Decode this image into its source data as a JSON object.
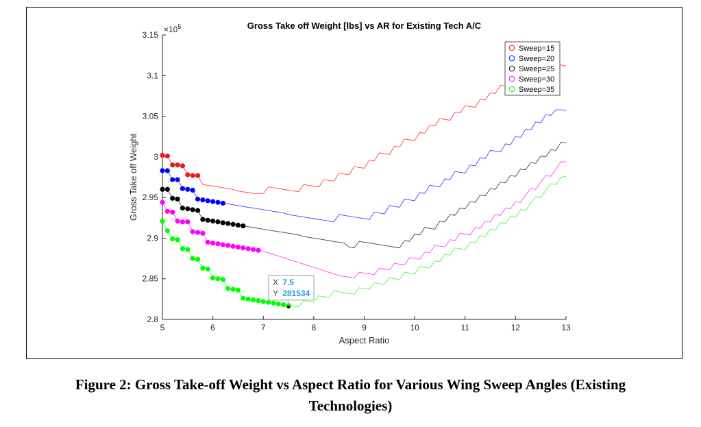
{
  "caption": {
    "line1": "Figure 2: Gross Take-off Weight vs Aspect Ratio for Various Wing Sweep Angles (Existing",
    "line2": "Technologies)"
  },
  "chart_data": {
    "type": "line",
    "title": "Gross Take off Weight [lbs] vs AR for Existing Tech A/C",
    "xlabel": "Aspect Ratio",
    "ylabel": "Gross Take off Weight",
    "y_exponent_label": "×10",
    "y_exponent": "5",
    "xlim": [
      5,
      13
    ],
    "ylim": [
      2.8,
      3.15
    ],
    "xticks": [
      5,
      6,
      7,
      8,
      9,
      10,
      11,
      12,
      13
    ],
    "yticks": [
      2.8,
      2.85,
      2.9,
      2.95,
      3.0,
      3.05,
      3.1,
      3.15
    ],
    "ytick_labels": [
      "2.8",
      "2.85",
      "2.9",
      "2.95",
      "3",
      "3.05",
      "3.1",
      "3.15"
    ],
    "grid": false,
    "legend_position": "top-right",
    "x_start": 5,
    "x_step": 0.1,
    "series": [
      {
        "name": "Sweep=15",
        "color": "#ff0000",
        "marker_color": "#e51c23",
        "marker_count": 8,
        "values": [
          3.002,
          3.001,
          2.99,
          2.99,
          2.989,
          2.978,
          2.977,
          2.977,
          2.966,
          2.965,
          2.964,
          2.963,
          2.962,
          2.961,
          2.96,
          2.958,
          2.957,
          2.956,
          2.955,
          2.955,
          2.955,
          2.963,
          2.962,
          2.961,
          2.96,
          2.959,
          2.958,
          2.957,
          2.966,
          2.965,
          2.964,
          2.963,
          2.972,
          2.971,
          2.97,
          2.98,
          2.979,
          2.978,
          2.988,
          2.987,
          2.986,
          2.996,
          2.995,
          3.005,
          3.004,
          3.003,
          3.013,
          3.012,
          3.022,
          3.021,
          3.02,
          3.03,
          3.029,
          3.039,
          3.038,
          3.047,
          3.046,
          3.045,
          3.055,
          3.054,
          3.063,
          3.062,
          3.061,
          3.071,
          3.07,
          3.079,
          3.078,
          3.088,
          3.087,
          3.086,
          3.095,
          3.094,
          3.103,
          3.102,
          3.101,
          3.11,
          3.109,
          3.113,
          3.113,
          3.113,
          3.112
        ]
      },
      {
        "name": "Sweep=20",
        "color": "#0000ff",
        "marker_color": "#0000ff",
        "marker_count": 13,
        "values": [
          2.983,
          2.983,
          2.972,
          2.972,
          2.961,
          2.96,
          2.959,
          2.948,
          2.947,
          2.946,
          2.945,
          2.944,
          2.943,
          2.942,
          2.941,
          2.94,
          2.939,
          2.938,
          2.937,
          2.936,
          2.935,
          2.934,
          2.933,
          2.932,
          2.931,
          2.929,
          2.928,
          2.927,
          2.926,
          2.925,
          2.924,
          2.923,
          2.922,
          2.921,
          2.92,
          2.929,
          2.928,
          2.927,
          2.926,
          2.925,
          2.924,
          2.923,
          2.932,
          2.931,
          2.93,
          2.94,
          2.939,
          2.938,
          2.948,
          2.947,
          2.946,
          2.956,
          2.955,
          2.965,
          2.964,
          2.963,
          2.973,
          2.972,
          2.982,
          2.981,
          2.98,
          2.99,
          2.989,
          2.999,
          2.998,
          3.008,
          3.007,
          3.006,
          3.016,
          3.015,
          3.025,
          3.024,
          3.034,
          3.033,
          3.043,
          3.042,
          3.052,
          3.051,
          3.058,
          3.058,
          3.057
        ]
      },
      {
        "name": "Sweep=25",
        "color": "#000000",
        "marker_color": "#000000",
        "marker_count": 17,
        "values": [
          2.96,
          2.96,
          2.949,
          2.948,
          2.937,
          2.936,
          2.935,
          2.934,
          2.923,
          2.922,
          2.921,
          2.92,
          2.919,
          2.918,
          2.917,
          2.916,
          2.915,
          2.914,
          2.913,
          2.912,
          2.911,
          2.91,
          2.909,
          2.908,
          2.907,
          2.906,
          2.905,
          2.904,
          2.902,
          2.901,
          2.9,
          2.899,
          2.898,
          2.897,
          2.896,
          2.895,
          2.894,
          2.889,
          2.888,
          2.896,
          2.895,
          2.894,
          2.893,
          2.892,
          2.891,
          2.89,
          2.889,
          2.888,
          2.897,
          2.896,
          2.905,
          2.904,
          2.913,
          2.912,
          2.911,
          2.921,
          2.92,
          2.929,
          2.928,
          2.937,
          2.936,
          2.945,
          2.944,
          2.953,
          2.952,
          2.961,
          2.96,
          2.969,
          2.968,
          2.977,
          2.976,
          2.985,
          2.984,
          2.993,
          2.992,
          3.001,
          3.0,
          3.009,
          3.008,
          3.018,
          3.017
        ]
      },
      {
        "name": "Sweep=30",
        "color": "#ff00ff",
        "marker_color": "#ff00ff",
        "marker_count": 20,
        "values": [
          2.944,
          2.933,
          2.932,
          2.921,
          2.92,
          2.92,
          2.908,
          2.907,
          2.906,
          2.895,
          2.894,
          2.893,
          2.892,
          2.891,
          2.89,
          2.889,
          2.888,
          2.887,
          2.886,
          2.885,
          2.884,
          2.882,
          2.88,
          2.878,
          2.876,
          2.874,
          2.872,
          2.87,
          2.868,
          2.866,
          2.864,
          2.862,
          2.86,
          2.858,
          2.856,
          2.854,
          2.853,
          2.852,
          2.851,
          2.858,
          2.857,
          2.856,
          2.855,
          2.863,
          2.862,
          2.861,
          2.869,
          2.868,
          2.867,
          2.876,
          2.875,
          2.874,
          2.883,
          2.882,
          2.891,
          2.89,
          2.889,
          2.898,
          2.897,
          2.906,
          2.905,
          2.904,
          2.913,
          2.912,
          2.921,
          2.92,
          2.929,
          2.928,
          2.937,
          2.936,
          2.945,
          2.944,
          2.953,
          2.961,
          2.96,
          2.969,
          2.977,
          2.976,
          2.985,
          2.994,
          2.994
        ]
      },
      {
        "name": "Sweep=35",
        "color": "#00ff00",
        "marker_color": "#00ff00",
        "marker_count": 26,
        "values": [
          2.921,
          2.909,
          2.899,
          2.898,
          2.887,
          2.886,
          2.875,
          2.874,
          2.863,
          2.862,
          2.851,
          2.85,
          2.849,
          2.838,
          2.837,
          2.836,
          2.826,
          2.825,
          2.824,
          2.823,
          2.822,
          2.821,
          2.82,
          2.819,
          2.818,
          2.817,
          2.816,
          2.8153,
          2.823,
          2.822,
          2.821,
          2.829,
          2.828,
          2.827,
          2.835,
          2.834,
          2.833,
          2.832,
          2.831,
          2.839,
          2.838,
          2.837,
          2.845,
          2.844,
          2.843,
          2.851,
          2.85,
          2.849,
          2.858,
          2.857,
          2.856,
          2.865,
          2.864,
          2.863,
          2.872,
          2.871,
          2.88,
          2.879,
          2.888,
          2.887,
          2.886,
          2.895,
          2.894,
          2.903,
          2.902,
          2.911,
          2.91,
          2.919,
          2.918,
          2.927,
          2.926,
          2.935,
          2.934,
          2.943,
          2.951,
          2.95,
          2.959,
          2.967,
          2.966,
          2.975,
          2.976
        ]
      }
    ],
    "datatip": {
      "x_label": "X",
      "x_value": "7.5",
      "y_label": "Y",
      "y_value": "281534",
      "x": 7.5,
      "y": 2.81534
    }
  }
}
